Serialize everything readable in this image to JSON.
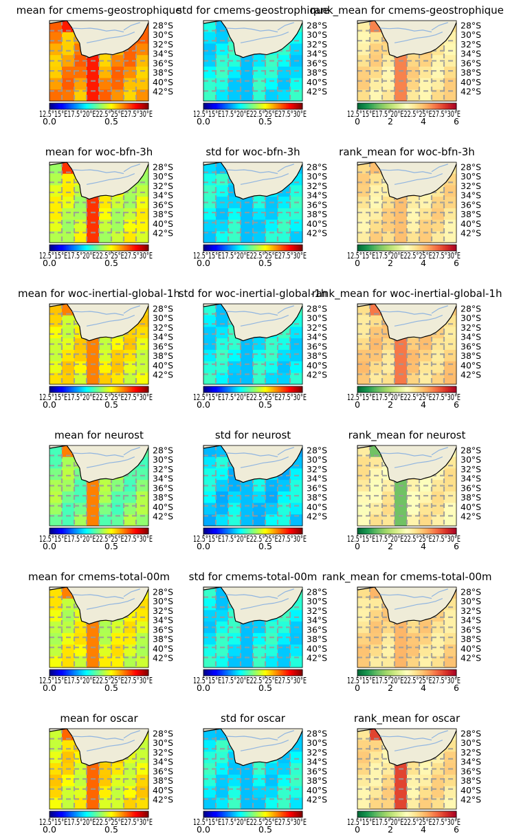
{
  "figure": {
    "layout": "6 rows x 3 columns of map panels",
    "map_extent": {
      "lon": [
        12,
        32
      ],
      "lat": [
        -44,
        -27
      ]
    },
    "lat_tick_labels": [
      "28°S",
      "30°S",
      "32°S",
      "34°S",
      "36°S",
      "38°S",
      "40°S",
      "42°S"
    ],
    "lon_tick_labels_overlapping": "12.5°15°E17.5°20°E22.5°25°E27.5°30°E",
    "colors": {
      "land": "#efecd8",
      "coast": "#000000",
      "rivers": "#8fb4e0",
      "grid": "#9a9a9a"
    }
  },
  "colorbars": {
    "mean": {
      "colormap": "jet",
      "range": [
        0,
        0.8
      ],
      "tick_labels": [
        "0.0",
        "0.5"
      ],
      "tick_values": [
        0,
        0.5
      ]
    },
    "std": {
      "colormap": "jet",
      "range": [
        0,
        0.8
      ],
      "tick_labels": [
        "0.0",
        "0.5"
      ],
      "tick_values": [
        0,
        0.5
      ]
    },
    "rank_mean": {
      "colormap": "RdYlGn_r",
      "range": [
        0,
        6
      ],
      "tick_labels": [
        "0",
        "2",
        "4",
        "6"
      ],
      "tick_values": [
        0,
        2,
        4,
        6
      ]
    }
  },
  "chart_data": [
    {
      "type": "heatmap",
      "row": 0,
      "metric": "mean",
      "title": "mean for cmems-geostrophique",
      "field_level": 0.58,
      "hotspot_level": 0.68
    },
    {
      "type": "heatmap",
      "row": 0,
      "metric": "std",
      "title": "std for cmems-geostrophique",
      "field_level": 0.3,
      "hotspot_level": 0.25
    },
    {
      "type": "heatmap",
      "row": 0,
      "metric": "rank_mean",
      "title": "rank_mean for cmems-geostrophique",
      "field_level": 3.5,
      "hotspot_level": 4.6
    },
    {
      "type": "heatmap",
      "row": 1,
      "metric": "mean",
      "title": "mean for woc-bfn-3h",
      "field_level": 0.47,
      "hotspot_level": 0.66
    },
    {
      "type": "heatmap",
      "row": 1,
      "metric": "std",
      "title": "std for woc-bfn-3h",
      "field_level": 0.3,
      "hotspot_level": 0.25
    },
    {
      "type": "heatmap",
      "row": 1,
      "metric": "rank_mean",
      "title": "rank_mean for woc-bfn-3h",
      "field_level": 3.5,
      "hotspot_level": 4.0
    },
    {
      "type": "heatmap",
      "row": 2,
      "metric": "mean",
      "title": "mean for woc-inertial-global-1h",
      "field_level": 0.5,
      "hotspot_level": 0.6
    },
    {
      "type": "heatmap",
      "row": 2,
      "metric": "std",
      "title": "std for woc-inertial-global-1h",
      "field_level": 0.3,
      "hotspot_level": 0.25
    },
    {
      "type": "heatmap",
      "row": 2,
      "metric": "rank_mean",
      "title": "rank_mean for woc-inertial-global-1h",
      "field_level": 3.7,
      "hotspot_level": 4.7
    },
    {
      "type": "heatmap",
      "row": 3,
      "metric": "mean",
      "title": "mean for neurost",
      "field_level": 0.4,
      "hotspot_level": 0.6
    },
    {
      "type": "heatmap",
      "row": 3,
      "metric": "std",
      "title": "std for neurost",
      "field_level": 0.28,
      "hotspot_level": 0.25
    },
    {
      "type": "heatmap",
      "row": 3,
      "metric": "rank_mean",
      "title": "rank_mean for neurost",
      "field_level": 3.3,
      "hotspot_level": 1.3
    },
    {
      "type": "heatmap",
      "row": 4,
      "metric": "mean",
      "title": "mean for cmems-total-00m",
      "field_level": 0.48,
      "hotspot_level": 0.6
    },
    {
      "type": "heatmap",
      "row": 4,
      "metric": "std",
      "title": "std for cmems-total-00m",
      "field_level": 0.3,
      "hotspot_level": 0.25
    },
    {
      "type": "heatmap",
      "row": 4,
      "metric": "rank_mean",
      "title": "rank_mean for cmems-total-00m",
      "field_level": 3.6,
      "hotspot_level": 4.1
    },
    {
      "type": "heatmap",
      "row": 5,
      "metric": "mean",
      "title": "mean for oscar",
      "field_level": 0.5,
      "hotspot_level": 0.62
    },
    {
      "type": "heatmap",
      "row": 5,
      "metric": "std",
      "title": "std for oscar",
      "field_level": 0.3,
      "hotspot_level": 0.25
    },
    {
      "type": "heatmap",
      "row": 5,
      "metric": "rank_mean",
      "title": "rank_mean for oscar",
      "field_level": 3.5,
      "hotspot_level": 5.2
    }
  ]
}
